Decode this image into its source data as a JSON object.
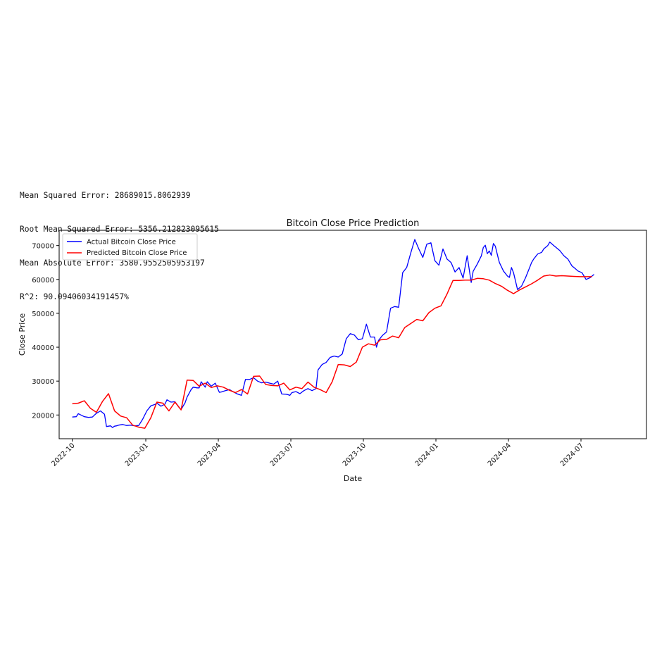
{
  "metrics": {
    "mse": "Mean Squared Error: 28689015.8062939",
    "rmse": "Root Mean Squared Error: 5356.212823095615",
    "mae": "Mean Absolute Error: 3580.9552505953197",
    "r2": "R^2: 90.09406034191457%"
  },
  "chart_data": {
    "type": "line",
    "title": "Bitcoin Close Price Prediction",
    "xlabel": "Date",
    "ylabel": "Close Price",
    "xlim": [
      -6.5,
      285
    ],
    "ylim": [
      13000,
      74500
    ],
    "x_ticks": [
      {
        "label": "2022-10",
        "x": 0
      },
      {
        "label": "2023-01",
        "x": 36.5
      },
      {
        "label": "2023-04",
        "x": 72.5
      },
      {
        "label": "2023-07",
        "x": 108.5
      },
      {
        "label": "2023-10",
        "x": 144.5
      },
      {
        "label": "2024-01",
        "x": 180.5
      },
      {
        "label": "2024-04",
        "x": 216.5
      },
      {
        "label": "2024-07",
        "x": 252.5
      }
    ],
    "y_ticks": [
      20000,
      30000,
      40000,
      50000,
      60000,
      70000
    ],
    "legend_position": "top-left",
    "series": [
      {
        "name": "Actual Bitcoin Close Price",
        "color": "#0000ff",
        "x": [
          0,
          2,
          3,
          5,
          6,
          8,
          10,
          12,
          14,
          16,
          17,
          19,
          20,
          21,
          22,
          23,
          25,
          27,
          29,
          31,
          33,
          35,
          37,
          39,
          41,
          42,
          44,
          46,
          47,
          49,
          51,
          53,
          54,
          56,
          57,
          59,
          60,
          62,
          63,
          64,
          66,
          67,
          69,
          71,
          73,
          74,
          76,
          78,
          80,
          82,
          84,
          86,
          88,
          90,
          92,
          94,
          96,
          98,
          100,
          102,
          104,
          106,
          107,
          108,
          109,
          111,
          113,
          115,
          117,
          119,
          121,
          122,
          124,
          126,
          128,
          130,
          132,
          134,
          136,
          138,
          140,
          142,
          144,
          146,
          148,
          150,
          151,
          152,
          154,
          156,
          158,
          160,
          162,
          164,
          166,
          168,
          170,
          172,
          174,
          176,
          178,
          180,
          182,
          184,
          186,
          188,
          190,
          192,
          194,
          196,
          198,
          199,
          201,
          203,
          204,
          205,
          206,
          207,
          208,
          209,
          210,
          211,
          212,
          214,
          216,
          217,
          218,
          219,
          221,
          223,
          225,
          227,
          228,
          229,
          231,
          233,
          234,
          236,
          237,
          239,
          240,
          242,
          244,
          246,
          247,
          248,
          250,
          251,
          253,
          254,
          255,
          257,
          259
        ],
        "values": [
          19400,
          19500,
          20400,
          19800,
          19500,
          19300,
          19400,
          20500,
          21200,
          20200,
          16600,
          16800,
          16300,
          16700,
          16800,
          17000,
          17200,
          16900,
          17000,
          16800,
          16900,
          18800,
          21200,
          22700,
          23100,
          23500,
          22600,
          23200,
          24500,
          23800,
          23900,
          22300,
          21600,
          23600,
          25300,
          27500,
          28200,
          28000,
          28000,
          29800,
          28200,
          29800,
          28500,
          29400,
          26700,
          26800,
          27200,
          27500,
          26800,
          26200,
          25800,
          30500,
          30500,
          31000,
          30000,
          29500,
          29700,
          29400,
          29100,
          30000,
          26200,
          26100,
          26000,
          25800,
          26600,
          26900,
          26300,
          27200,
          27800,
          27200,
          27800,
          33300,
          34900,
          35500,
          37000,
          37400,
          37100,
          38000,
          42500,
          44000,
          43600,
          42200,
          42500,
          46800,
          43000,
          43000,
          40000,
          42000,
          43500,
          44500,
          51500,
          52000,
          51800,
          62000,
          63500,
          67800,
          71800,
          69000,
          66500,
          70400,
          70800,
          65500,
          64200,
          69000,
          66000,
          65000,
          62200,
          63500,
          60400,
          67000,
          59100,
          62400,
          64500,
          66900,
          69400,
          70100,
          67600,
          68400,
          67100,
          70600,
          69800,
          67300,
          65000,
          62500,
          61000,
          60600,
          63500,
          62000,
          57000,
          58000,
          60500,
          63500,
          65000,
          66000,
          67500,
          68000,
          69000,
          70000,
          71000,
          70000,
          69500,
          68500,
          67000,
          66000,
          65000,
          64000,
          63000,
          62500,
          62000,
          61000,
          60000,
          60500,
          61500
        ]
      },
      {
        "name": "Predicted Bitcoin Close Price",
        "color": "#ff0000",
        "x": [
          0,
          3,
          6,
          9,
          12,
          15,
          18,
          21,
          24,
          27,
          30,
          33,
          36,
          39,
          42,
          45,
          48,
          51,
          54,
          57,
          60,
          63,
          66,
          69,
          72,
          75,
          78,
          81,
          84,
          87,
          90,
          93,
          96,
          99,
          102,
          105,
          108,
          111,
          114,
          117,
          120,
          123,
          126,
          129,
          132,
          135,
          138,
          141,
          144,
          147,
          150,
          153,
          156,
          159,
          162,
          165,
          168,
          171,
          174,
          177,
          180,
          183,
          186,
          189,
          192,
          195,
          198,
          201,
          204,
          207,
          210,
          213,
          216,
          219,
          222,
          225,
          228,
          231,
          234,
          237,
          240,
          243,
          246,
          249,
          252,
          255,
          258
        ],
        "values": [
          23300,
          23500,
          24200,
          22000,
          20800,
          24000,
          26300,
          21200,
          19700,
          19200,
          17000,
          16400,
          16100,
          19200,
          23800,
          23500,
          21200,
          23800,
          21500,
          30300,
          30200,
          28500,
          29400,
          28100,
          28600,
          28200,
          27300,
          26600,
          27500,
          26200,
          31400,
          31500,
          29000,
          28700,
          28600,
          29400,
          27400,
          28200,
          27800,
          29700,
          28200,
          27500,
          26600,
          29800,
          34900,
          34800,
          34300,
          35600,
          40000,
          41000,
          40600,
          42200,
          42300,
          43300,
          42800,
          45800,
          47000,
          48200,
          47800,
          50200,
          51500,
          52200,
          55700,
          59700,
          59700,
          59800,
          59800,
          60300,
          60200,
          59800,
          58800,
          58000,
          56800,
          55800,
          56900,
          57800,
          58700,
          59800,
          61000,
          61300,
          61000,
          61100,
          61000,
          60900,
          60800,
          60800,
          60800
        ]
      }
    ]
  }
}
